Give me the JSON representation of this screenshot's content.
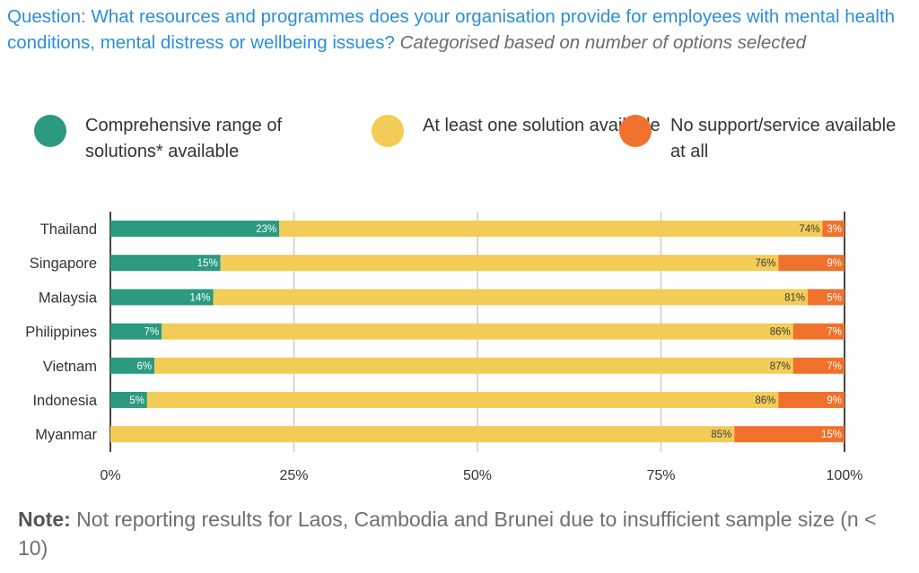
{
  "question": {
    "prefix": "Question: What resources and programmes does your organisation provide for employees with mental health conditions, mental distress or wellbeing issues?",
    "suffix": "Categorised based on number of options selected"
  },
  "legend": [
    {
      "label": "Comprehensive range of solutions* available",
      "color": "#2b9a7f"
    },
    {
      "label": "At least one solution available",
      "color": "#f2cc56"
    },
    {
      "label": "No support/service available at all",
      "color": "#f0712b"
    }
  ],
  "note": {
    "label": "Note:",
    "text": "Not reporting results for Laos, Cambodia and Brunei due to insufficient sample size (n < 10)"
  },
  "chart_data": {
    "type": "bar",
    "orientation": "horizontal",
    "stacked": true,
    "categories": [
      "Thailand",
      "Singapore",
      "Malaysia",
      "Philippines",
      "Vietnam",
      "Indonesia",
      "Myanmar"
    ],
    "series": [
      {
        "name": "Comprehensive range of solutions* available",
        "color": "#2b9a7f",
        "values": [
          23,
          15,
          14,
          7,
          6,
          5,
          0
        ],
        "labels": [
          "23%",
          "15%",
          "14%",
          "7%",
          "6%",
          "5%",
          ""
        ]
      },
      {
        "name": "At least one solution available",
        "color": "#f2cc56",
        "values": [
          74,
          76,
          81,
          86,
          87,
          86,
          85
        ],
        "labels": [
          "74%",
          "76%",
          "81%",
          "86%",
          "87%",
          "86%",
          "85%"
        ]
      },
      {
        "name": "No support/service available at all",
        "color": "#f0712b",
        "values": [
          3,
          9,
          5,
          7,
          7,
          9,
          15
        ],
        "labels": [
          "3%",
          "9%",
          "5%",
          "7%",
          "7%",
          "9%",
          "15%"
        ]
      }
    ],
    "xlim": [
      0,
      100
    ],
    "xticks": [
      "0%",
      "25%",
      "50%",
      "75%",
      "100%"
    ],
    "grid": true,
    "legend_position": "top"
  }
}
